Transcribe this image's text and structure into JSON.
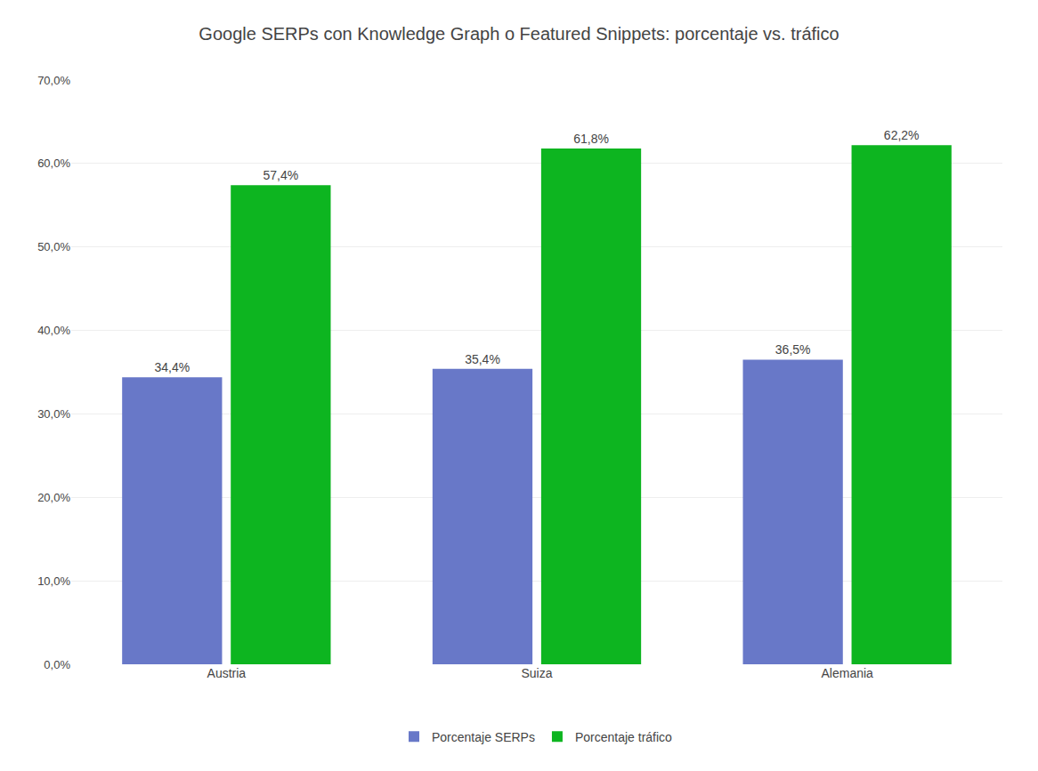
{
  "chart_data": {
    "type": "bar",
    "title": "Google SERPs con Knowledge Graph o Featured Snippets: porcentaje vs. tráfico",
    "categories": [
      "Austria",
      "Suiza",
      "Alemania"
    ],
    "series": [
      {
        "name": "Porcentaje SERPs",
        "color": "#6878c8",
        "values": [
          34.4,
          35.4,
          36.5
        ],
        "value_labels": [
          "34,4%",
          "35,4%",
          "36,5%"
        ]
      },
      {
        "name": "Porcentaje tráfico",
        "color": "#0db520",
        "values": [
          57.4,
          61.8,
          62.2
        ],
        "value_labels": [
          "57,4%",
          "61,8%",
          "62,2%"
        ]
      }
    ],
    "ylim": [
      0,
      70
    ],
    "yticks": [
      {
        "value": 0,
        "label": "0,0%"
      },
      {
        "value": 10,
        "label": "10,0%"
      },
      {
        "value": 20,
        "label": "20,0%"
      },
      {
        "value": 30,
        "label": "30,0%"
      },
      {
        "value": 40,
        "label": "40,0%"
      },
      {
        "value": 50,
        "label": "50,0%"
      },
      {
        "value": 60,
        "label": "60,0%"
      },
      {
        "value": 70,
        "label": "70,0%"
      }
    ],
    "grid": true,
    "legend": "bottom",
    "data_labels": true
  }
}
